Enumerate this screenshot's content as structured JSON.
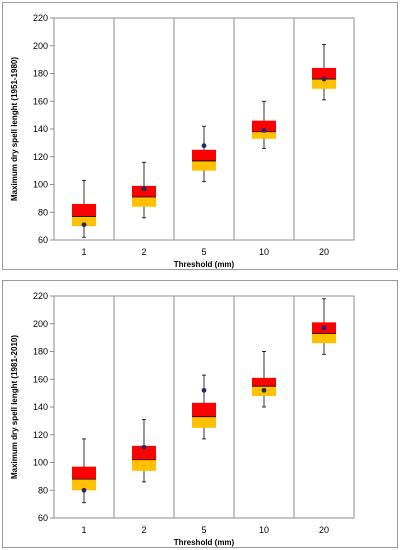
{
  "colors": {
    "box_upper": "#ff0000",
    "box_lower": "#ffc000",
    "median_line": "#000000",
    "whisker": "#000000",
    "mean_marker": "#1f2a6e",
    "grid": "#8c8c8c"
  },
  "chart_data": [
    {
      "type": "box",
      "xlabel": "Threshold (mm)",
      "ylabel": "Maximum dry spell lenght (1951-1980)",
      "ylim": [
        60,
        220
      ],
      "yticks": [
        60,
        80,
        100,
        120,
        140,
        160,
        180,
        200,
        220
      ],
      "categories": [
        "1",
        "2",
        "5",
        "10",
        "20"
      ],
      "grid": "vertical",
      "boxes": [
        {
          "min": 62,
          "q1": 70,
          "median": 77,
          "q3": 86,
          "max": 103,
          "mean": 71
        },
        {
          "min": 76,
          "q1": 84,
          "median": 91,
          "q3": 99,
          "max": 116,
          "mean": 97
        },
        {
          "min": 102,
          "q1": 110,
          "median": 117,
          "q3": 125,
          "max": 142,
          "mean": 128
        },
        {
          "min": 126,
          "q1": 133,
          "median": 138,
          "q3": 146,
          "max": 160,
          "mean": 139
        },
        {
          "min": 161,
          "q1": 169,
          "median": 176,
          "q3": 184,
          "max": 201,
          "mean": 176
        }
      ]
    },
    {
      "type": "box",
      "xlabel": "Threshold (mm)",
      "ylabel": "Maximum dry spell lenght (1981-2010)",
      "ylim": [
        60,
        220
      ],
      "yticks": [
        60,
        80,
        100,
        120,
        140,
        160,
        180,
        200,
        220
      ],
      "categories": [
        "1",
        "2",
        "5",
        "10",
        "20"
      ],
      "grid": "vertical",
      "boxes": [
        {
          "min": 71,
          "q1": 80,
          "median": 88,
          "q3": 97,
          "max": 117,
          "mean": 80
        },
        {
          "min": 86,
          "q1": 94,
          "median": 102,
          "q3": 112,
          "max": 131,
          "mean": 111
        },
        {
          "min": 117,
          "q1": 125,
          "median": 133,
          "q3": 143,
          "max": 163,
          "mean": 152
        },
        {
          "min": 140,
          "q1": 148,
          "median": 155,
          "q3": 161,
          "max": 180,
          "mean": 152
        },
        {
          "min": 178,
          "q1": 186,
          "median": 193,
          "q3": 201,
          "max": 218,
          "mean": 197
        }
      ]
    }
  ]
}
